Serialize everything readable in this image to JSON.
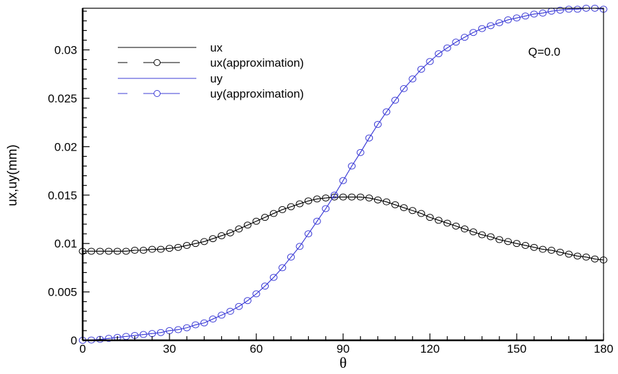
{
  "chart_data": {
    "type": "line",
    "title": "",
    "xlabel": "θ",
    "ylabel": "ux,uy(mm)",
    "xlim": [
      0,
      180
    ],
    "ylim": [
      0,
      0.0343
    ],
    "x_ticks": [
      "0",
      "30",
      "60",
      "90",
      "120",
      "150",
      "180"
    ],
    "x_tick_values": [
      0,
      30,
      60,
      90,
      120,
      150,
      180
    ],
    "y_ticks": [
      "0",
      "0.005",
      "0.01",
      "0.015",
      "0.02",
      "0.025",
      "0.03"
    ],
    "y_tick_values": [
      0,
      0.005,
      0.01,
      0.015,
      0.02,
      0.025,
      0.03
    ],
    "grid": false,
    "legend_position": "top-left",
    "annotation": "Q=0.0",
    "x": [
      0,
      3,
      6,
      9,
      12,
      15,
      18,
      21,
      24,
      27,
      30,
      33,
      36,
      39,
      42,
      45,
      48,
      51,
      54,
      57,
      60,
      63,
      66,
      69,
      72,
      75,
      78,
      81,
      84,
      87,
      90,
      93,
      96,
      99,
      102,
      105,
      108,
      111,
      114,
      117,
      120,
      123,
      126,
      129,
      132,
      135,
      138,
      141,
      144,
      147,
      150,
      153,
      156,
      159,
      162,
      165,
      168,
      171,
      174,
      177,
      180
    ],
    "series": [
      {
        "name": "ux",
        "color": "#000000",
        "style": "solid",
        "marker": false,
        "values": [
          0.0092,
          0.0092,
          0.0092,
          0.0092,
          0.0092,
          0.0092,
          0.0093,
          0.0093,
          0.0094,
          0.0094,
          0.0095,
          0.0096,
          0.0098,
          0.01,
          0.0102,
          0.0105,
          0.0108,
          0.0111,
          0.0115,
          0.0119,
          0.0123,
          0.0127,
          0.0131,
          0.0135,
          0.0138,
          0.0141,
          0.0144,
          0.0146,
          0.0147,
          0.0148,
          0.0148,
          0.0148,
          0.0148,
          0.0147,
          0.0145,
          0.0143,
          0.014,
          0.0137,
          0.0134,
          0.0131,
          0.0127,
          0.0124,
          0.0121,
          0.0118,
          0.0115,
          0.0112,
          0.0109,
          0.0107,
          0.0104,
          0.0102,
          0.01,
          0.0098,
          0.0096,
          0.0094,
          0.0093,
          0.0091,
          0.0089,
          0.0087,
          0.0086,
          0.0084,
          0.0083
        ]
      },
      {
        "name": "ux(approximation)",
        "color": "#000000",
        "style": "dashed",
        "marker": true,
        "values": [
          0.0092,
          0.0092,
          0.0092,
          0.0092,
          0.0092,
          0.0092,
          0.0093,
          0.0093,
          0.0094,
          0.0094,
          0.0095,
          0.0096,
          0.0098,
          0.01,
          0.0102,
          0.0105,
          0.0108,
          0.0111,
          0.0115,
          0.0119,
          0.0123,
          0.0127,
          0.0131,
          0.0135,
          0.0138,
          0.0141,
          0.0144,
          0.0146,
          0.0147,
          0.0148,
          0.0148,
          0.0148,
          0.0148,
          0.0147,
          0.0145,
          0.0143,
          0.014,
          0.0137,
          0.0134,
          0.0131,
          0.0127,
          0.0124,
          0.0121,
          0.0118,
          0.0115,
          0.0112,
          0.0109,
          0.0107,
          0.0104,
          0.0102,
          0.01,
          0.0098,
          0.0096,
          0.0094,
          0.0093,
          0.0091,
          0.0089,
          0.0087,
          0.0086,
          0.0084,
          0.0083
        ]
      },
      {
        "name": "uy",
        "color": "#3b3bd6",
        "style": "solid",
        "marker": false,
        "values": [
          0.0,
          3e-05,
          0.0001,
          0.0002,
          0.0003,
          0.0004,
          0.0005,
          0.0006,
          0.0007,
          0.0008,
          0.001,
          0.0011,
          0.0013,
          0.0016,
          0.0018,
          0.0022,
          0.0026,
          0.003,
          0.0035,
          0.0041,
          0.0048,
          0.0056,
          0.0065,
          0.0075,
          0.0086,
          0.0097,
          0.011,
          0.0123,
          0.0136,
          0.015,
          0.0165,
          0.018,
          0.0194,
          0.0209,
          0.0223,
          0.0236,
          0.0248,
          0.026,
          0.027,
          0.028,
          0.0288,
          0.0296,
          0.0302,
          0.0308,
          0.0313,
          0.0318,
          0.0322,
          0.0325,
          0.0328,
          0.0331,
          0.0333,
          0.0335,
          0.0337,
          0.0338,
          0.034,
          0.0341,
          0.0342,
          0.0342,
          0.0343,
          0.0343,
          0.0342
        ]
      },
      {
        "name": "uy(approximation)",
        "color": "#3b3bd6",
        "style": "dashed",
        "marker": true,
        "values": [
          0.0,
          3e-05,
          0.0001,
          0.0002,
          0.0003,
          0.0004,
          0.0005,
          0.0006,
          0.0007,
          0.0008,
          0.001,
          0.0011,
          0.0013,
          0.0016,
          0.0018,
          0.0022,
          0.0026,
          0.003,
          0.0035,
          0.0041,
          0.0048,
          0.0056,
          0.0065,
          0.0075,
          0.0086,
          0.0097,
          0.011,
          0.0123,
          0.0136,
          0.015,
          0.0165,
          0.018,
          0.0194,
          0.0209,
          0.0223,
          0.0236,
          0.0248,
          0.026,
          0.027,
          0.028,
          0.0288,
          0.0296,
          0.0302,
          0.0308,
          0.0313,
          0.0318,
          0.0322,
          0.0325,
          0.0328,
          0.0331,
          0.0333,
          0.0335,
          0.0337,
          0.0338,
          0.034,
          0.0341,
          0.0342,
          0.0342,
          0.0343,
          0.0343,
          0.0342
        ]
      }
    ]
  }
}
